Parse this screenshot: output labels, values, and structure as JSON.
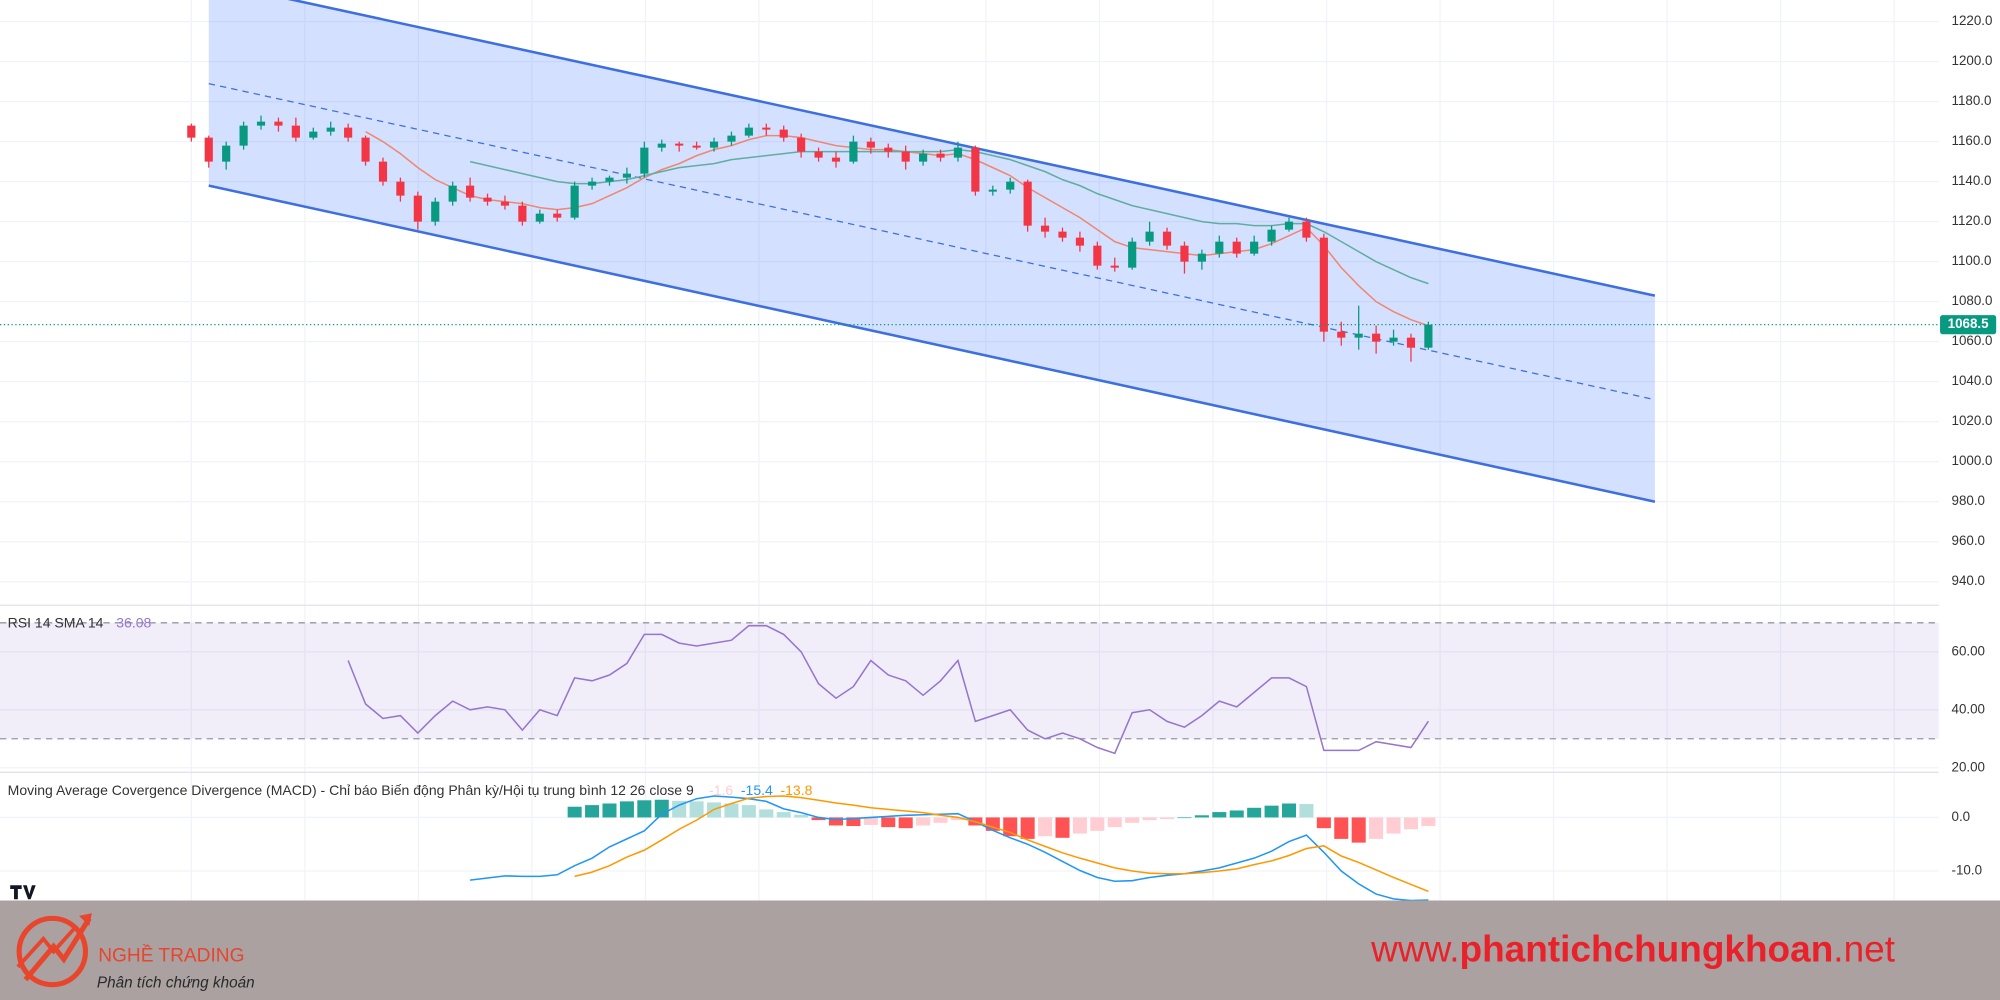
{
  "chart_data": [
    {
      "type": "candlestick",
      "ylim": [
        929.2,
        1230.8
      ],
      "yticks": [
        {
          "value": 940,
          "label": "940.0"
        },
        {
          "value": 960,
          "label": "960.0"
        },
        {
          "value": 980,
          "label": "980.0"
        },
        {
          "value": 1000,
          "label": "1000.0"
        },
        {
          "value": 1020,
          "label": "1020.0"
        },
        {
          "value": 1040,
          "label": "1040.0"
        },
        {
          "value": 1060,
          "label": "1060.0"
        },
        {
          "value": 1080,
          "label": "1080.0"
        },
        {
          "value": 1100,
          "label": "1100.0"
        },
        {
          "value": 1120,
          "label": "1120.0"
        },
        {
          "value": 1140,
          "label": "1140.0"
        },
        {
          "value": 1160,
          "label": "1160.0"
        },
        {
          "value": 1180,
          "label": "1180.0"
        },
        {
          "value": 1200,
          "label": "1200.0"
        },
        {
          "value": 1220,
          "label": "1220.0"
        }
      ],
      "grid": true,
      "up_color": "#089981",
      "down_color": "#f23645",
      "ohlc": [
        [
          1168,
          1169,
          1160,
          1162
        ],
        [
          1162,
          1163,
          1147,
          1150
        ],
        [
          1150,
          1160,
          1146,
          1158
        ],
        [
          1158,
          1170,
          1156,
          1168
        ],
        [
          1168,
          1173,
          1166,
          1170
        ],
        [
          1170,
          1172,
          1165,
          1168
        ],
        [
          1168,
          1172,
          1160,
          1162
        ],
        [
          1162,
          1167,
          1161,
          1165
        ],
        [
          1165,
          1170,
          1163,
          1167
        ],
        [
          1167,
          1169,
          1160,
          1162
        ],
        [
          1162,
          1163,
          1148,
          1150
        ],
        [
          1150,
          1152,
          1138,
          1140
        ],
        [
          1140,
          1142,
          1130,
          1133
        ],
        [
          1133,
          1135,
          1116,
          1120
        ],
        [
          1120,
          1132,
          1118,
          1130
        ],
        [
          1130,
          1140,
          1128,
          1138
        ],
        [
          1138,
          1142,
          1130,
          1132
        ],
        [
          1132,
          1134,
          1128,
          1130
        ],
        [
          1130,
          1133,
          1126,
          1128
        ],
        [
          1128,
          1130,
          1118,
          1120
        ],
        [
          1120,
          1126,
          1119,
          1124
        ],
        [
          1124,
          1126,
          1120,
          1122
        ],
        [
          1122,
          1140,
          1121,
          1138
        ],
        [
          1138,
          1142,
          1136,
          1140
        ],
        [
          1140,
          1143,
          1138,
          1142
        ],
        [
          1142,
          1147,
          1139,
          1144
        ],
        [
          1144,
          1160,
          1142,
          1157
        ],
        [
          1157,
          1161,
          1155,
          1159
        ],
        [
          1159,
          1160,
          1155,
          1158
        ],
        [
          1158,
          1160,
          1156,
          1157
        ],
        [
          1157,
          1162,
          1155,
          1160
        ],
        [
          1160,
          1165,
          1158,
          1163
        ],
        [
          1163,
          1169,
          1162,
          1167
        ],
        [
          1167,
          1169,
          1163,
          1166
        ],
        [
          1166,
          1168,
          1160,
          1162
        ],
        [
          1162,
          1164,
          1152,
          1155
        ],
        [
          1155,
          1157,
          1150,
          1152
        ],
        [
          1152,
          1155,
          1147,
          1150
        ],
        [
          1150,
          1163,
          1149,
          1160
        ],
        [
          1160,
          1162,
          1154,
          1157
        ],
        [
          1157,
          1159,
          1152,
          1155
        ],
        [
          1155,
          1158,
          1146,
          1150
        ],
        [
          1150,
          1156,
          1148,
          1154
        ],
        [
          1154,
          1156,
          1150,
          1152
        ],
        [
          1152,
          1160,
          1150,
          1157
        ],
        [
          1157,
          1158,
          1133,
          1135
        ],
        [
          1135,
          1138,
          1133,
          1136
        ],
        [
          1136,
          1142,
          1134,
          1140
        ],
        [
          1140,
          1141,
          1115,
          1118
        ],
        [
          1118,
          1122,
          1112,
          1115
        ],
        [
          1115,
          1117,
          1110,
          1112
        ],
        [
          1112,
          1115,
          1105,
          1108
        ],
        [
          1108,
          1110,
          1096,
          1098
        ],
        [
          1098,
          1102,
          1095,
          1097
        ],
        [
          1097,
          1112,
          1096,
          1110
        ],
        [
          1110,
          1120,
          1108,
          1115
        ],
        [
          1115,
          1117,
          1106,
          1108
        ],
        [
          1108,
          1110,
          1094,
          1100
        ],
        [
          1100,
          1106,
          1096,
          1104
        ],
        [
          1104,
          1113,
          1102,
          1110
        ],
        [
          1110,
          1112,
          1102,
          1104
        ],
        [
          1104,
          1113,
          1103,
          1110
        ],
        [
          1110,
          1118,
          1108,
          1116
        ],
        [
          1116,
          1122,
          1115,
          1120
        ],
        [
          1120,
          1122,
          1110,
          1112
        ],
        [
          1112,
          1114,
          1060,
          1065
        ],
        [
          1065,
          1070,
          1058,
          1062
        ],
        [
          1062,
          1078,
          1056,
          1064
        ],
        [
          1064,
          1068,
          1054,
          1060
        ],
        [
          1060,
          1066,
          1058,
          1062
        ],
        [
          1062,
          1064,
          1050,
          1057
        ],
        [
          1057,
          1070,
          1056,
          1068.5
        ]
      ],
      "overlays": [
        {
          "color": "#f0876f",
          "values": [
            null,
            null,
            null,
            null,
            null,
            null,
            null,
            null,
            null,
            null,
            1165,
            1160,
            1154,
            1147,
            1141,
            1137,
            1133,
            1131,
            1130,
            1129,
            1127,
            1126,
            1127,
            1129,
            1133,
            1137,
            1142,
            1146,
            1149,
            1153,
            1156,
            1158,
            1161,
            1163,
            1163,
            1162,
            1160,
            1158,
            1157,
            1156,
            1156,
            1155,
            1154,
            1153,
            1154,
            1151,
            1147,
            1143,
            1137,
            1132,
            1127,
            1122,
            1116,
            1110,
            1107,
            1106,
            1105,
            1104,
            1103,
            1104,
            1105,
            1106,
            1109,
            1113,
            1117,
            1108,
            1097,
            1088,
            1080,
            1075,
            1071,
            1068
          ]
        },
        {
          "color": "#5fae9e",
          "values": [
            null,
            null,
            null,
            null,
            null,
            null,
            null,
            null,
            null,
            null,
            null,
            null,
            null,
            null,
            null,
            null,
            1150,
            1148,
            1146,
            1144,
            1142,
            1140,
            1139,
            1139,
            1140,
            1141,
            1143,
            1145,
            1147,
            1148,
            1149,
            1151,
            1152,
            1153,
            1154,
            1155,
            1155,
            1155,
            1155,
            1155,
            1155,
            1155,
            1155,
            1155,
            1156,
            1155,
            1153,
            1151,
            1148,
            1145,
            1141,
            1138,
            1134,
            1131,
            1128,
            1126,
            1124,
            1122,
            1120,
            1119,
            1119,
            1118,
            1118,
            1119,
            1119,
            1115,
            1110,
            1105,
            1100,
            1096,
            1092,
            1089
          ]
        }
      ],
      "channel": {
        "color": "#3d6fe0",
        "fill": "rgba(41,98,255,0.2)",
        "x": [
          1,
          84
        ],
        "upper": [
          1240,
          1083
        ],
        "middle": [
          1189,
          1031
        ],
        "lower": [
          1138,
          980
        ]
      }
    },
    {
      "type": "line",
      "title": "RSI 14 SMA 14",
      "color": "#9575cd",
      "ylim": [
        19.1,
        75.4
      ],
      "yticks": [
        {
          "value": 20,
          "label": "20.00"
        },
        {
          "value": 40,
          "label": "40.00"
        },
        {
          "value": 60,
          "label": "60.00"
        }
      ],
      "bands": [
        30,
        70
      ],
      "values": [
        null,
        null,
        null,
        null,
        null,
        null,
        null,
        null,
        null,
        57,
        42,
        37,
        38,
        32,
        38,
        43,
        40,
        41,
        40,
        33,
        40,
        38,
        51,
        50,
        52,
        56,
        66,
        66,
        63,
        62,
        63,
        64,
        69,
        69,
        66,
        60,
        49,
        44,
        48,
        57,
        52,
        50,
        45,
        50,
        57,
        36,
        38,
        40,
        33,
        30,
        32,
        30,
        27,
        25,
        39,
        40,
        36,
        34,
        38,
        43,
        41,
        46,
        51,
        51,
        48,
        26,
        26,
        26,
        29,
        28,
        27,
        36.08
      ]
    },
    {
      "type": "macd",
      "title": "Moving Average Covergence Divergence (MACD) - Chỉ báo Biến động Phân kỳ/Hội tụ trung bình 12 26 close 9",
      "ylim": [
        -15.5,
        8.3
      ],
      "yticks": [
        {
          "value": 0,
          "label": "0.0"
        },
        {
          "value": -10,
          "label": "-10.0"
        }
      ],
      "colors": {
        "up_strong": "#26a69a",
        "up_weak": "#b2dfdb",
        "down_strong": "#ff5252",
        "down_weak": "#ffcdd2",
        "macd": "#2196f3",
        "signal": "#ff9800"
      },
      "histogram": [
        null,
        null,
        null,
        null,
        null,
        null,
        null,
        null,
        null,
        null,
        null,
        null,
        null,
        null,
        null,
        null,
        null,
        null,
        null,
        null,
        null,
        null,
        2.0,
        2.3,
        2.6,
        3.0,
        3.2,
        3.3,
        3.1,
        3.0,
        2.8,
        2.6,
        2.3,
        1.5,
        1.0,
        0.5,
        -0.5,
        -1.5,
        -1.6,
        -1.4,
        -1.8,
        -2.0,
        -1.5,
        -1.0,
        -0.5,
        -1.5,
        -2.5,
        -3.5,
        -4.0,
        -3.5,
        -3.8,
        -3.0,
        -2.5,
        -1.8,
        -1.0,
        -0.5,
        -0.3,
        0.0,
        0.4,
        1.0,
        1.3,
        1.8,
        2.2,
        2.6,
        2.5,
        -2.0,
        -4.0,
        -4.7,
        -4.0,
        -3.0,
        -2.2,
        -1.6
      ],
      "macd": [
        null,
        null,
        null,
        null,
        null,
        null,
        null,
        null,
        null,
        null,
        null,
        null,
        null,
        null,
        null,
        null,
        -11.7,
        -11.3,
        -10.9,
        -11.0,
        -11.0,
        -10.7,
        -9.0,
        -7.6,
        -5.5,
        -4.0,
        -2.5,
        0.6,
        2.3,
        3.5,
        4.0,
        3.8,
        3.5,
        3.0,
        1.6,
        0.9,
        0.0,
        -0.4,
        -0.2,
        0.0,
        0.2,
        0.4,
        0.5,
        0.6,
        0.7,
        -0.8,
        -2.4,
        -3.8,
        -5.0,
        -6.5,
        -8.2,
        -9.9,
        -11.2,
        -11.9,
        -11.8,
        -11.2,
        -10.8,
        -10.5,
        -10.0,
        -9.4,
        -8.5,
        -7.6,
        -6.3,
        -4.5,
        -3.3,
        -6.5,
        -10.0,
        -12.4,
        -14.3,
        -15.2,
        -15.5,
        -15.4
      ],
      "signal": [
        null,
        null,
        null,
        null,
        null,
        null,
        null,
        null,
        null,
        null,
        null,
        null,
        null,
        null,
        null,
        null,
        null,
        null,
        null,
        null,
        null,
        null,
        -11.0,
        -10.2,
        -9.0,
        -7.4,
        -6.1,
        -4.2,
        -2.2,
        -0.5,
        1.5,
        2.6,
        3.6,
        3.9,
        4.0,
        3.7,
        3.2,
        2.7,
        2.3,
        1.8,
        1.5,
        1.2,
        0.9,
        0.4,
        0.0,
        -0.8,
        -1.8,
        -2.8,
        -4.2,
        -5.4,
        -6.6,
        -7.6,
        -8.5,
        -9.4,
        -10.0,
        -10.4,
        -10.5,
        -10.5,
        -10.3,
        -10.0,
        -9.6,
        -8.8,
        -8.1,
        -7.1,
        -5.8,
        -5.3,
        -7.2,
        -8.4,
        -9.8,
        -11.2,
        -12.5,
        -13.8
      ]
    }
  ],
  "footer": {
    "brand": "NGHỀ TRADING",
    "tagline": "Phân tích chứng khoán",
    "site_prefix": "www.",
    "site_name": "phantichchungkhoan",
    "site_suffix": ".net"
  }
}
